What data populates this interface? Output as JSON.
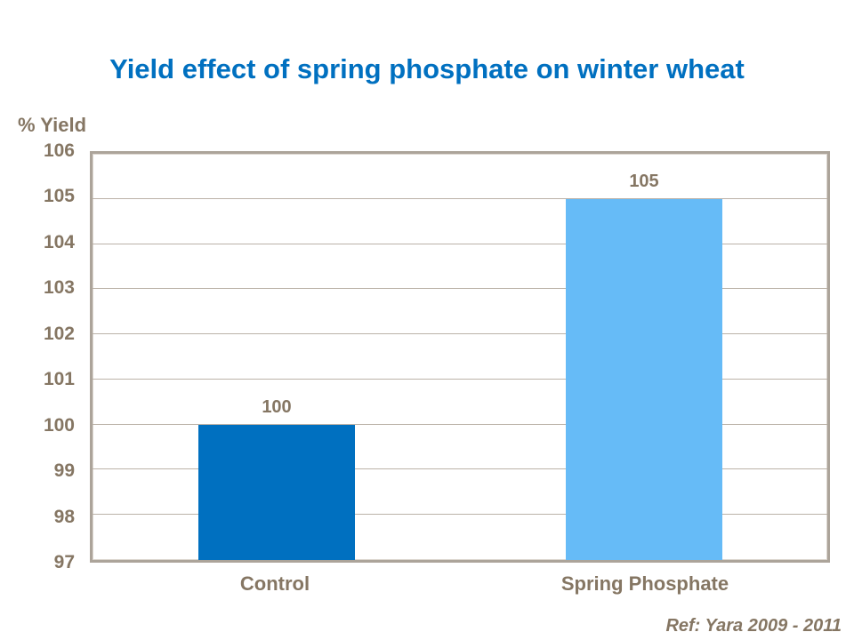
{
  "slide": {
    "title": "Yield effect of spring phosphate on winter wheat",
    "footer": "Ref: Yara 2009 - 2011"
  },
  "colors": {
    "background": "#FFFFFF",
    "title_text": "#0070C0",
    "axis_text": "#857663",
    "plot_border": "#ACA49A",
    "gridline": "#BBB2A8",
    "bar_control": "#0070C0",
    "bar_spring_phosphate": "#66BBF7"
  },
  "chart_data": {
    "type": "bar",
    "title": "Yield effect of spring phosphate on winter wheat",
    "xlabel": "",
    "ylabel": "% Yield",
    "categories": [
      "Control",
      "Spring Phosphate"
    ],
    "values": [
      100,
      105
    ],
    "data_labels": [
      "100",
      "105"
    ],
    "bar_colors": [
      "#0070C0",
      "#66BBF7"
    ],
    "ylim": [
      97,
      106
    ],
    "ytick_step": 1,
    "grid": true,
    "legend_position": "none",
    "annotations": [
      "Ref: Yara 2009 - 2011"
    ]
  }
}
